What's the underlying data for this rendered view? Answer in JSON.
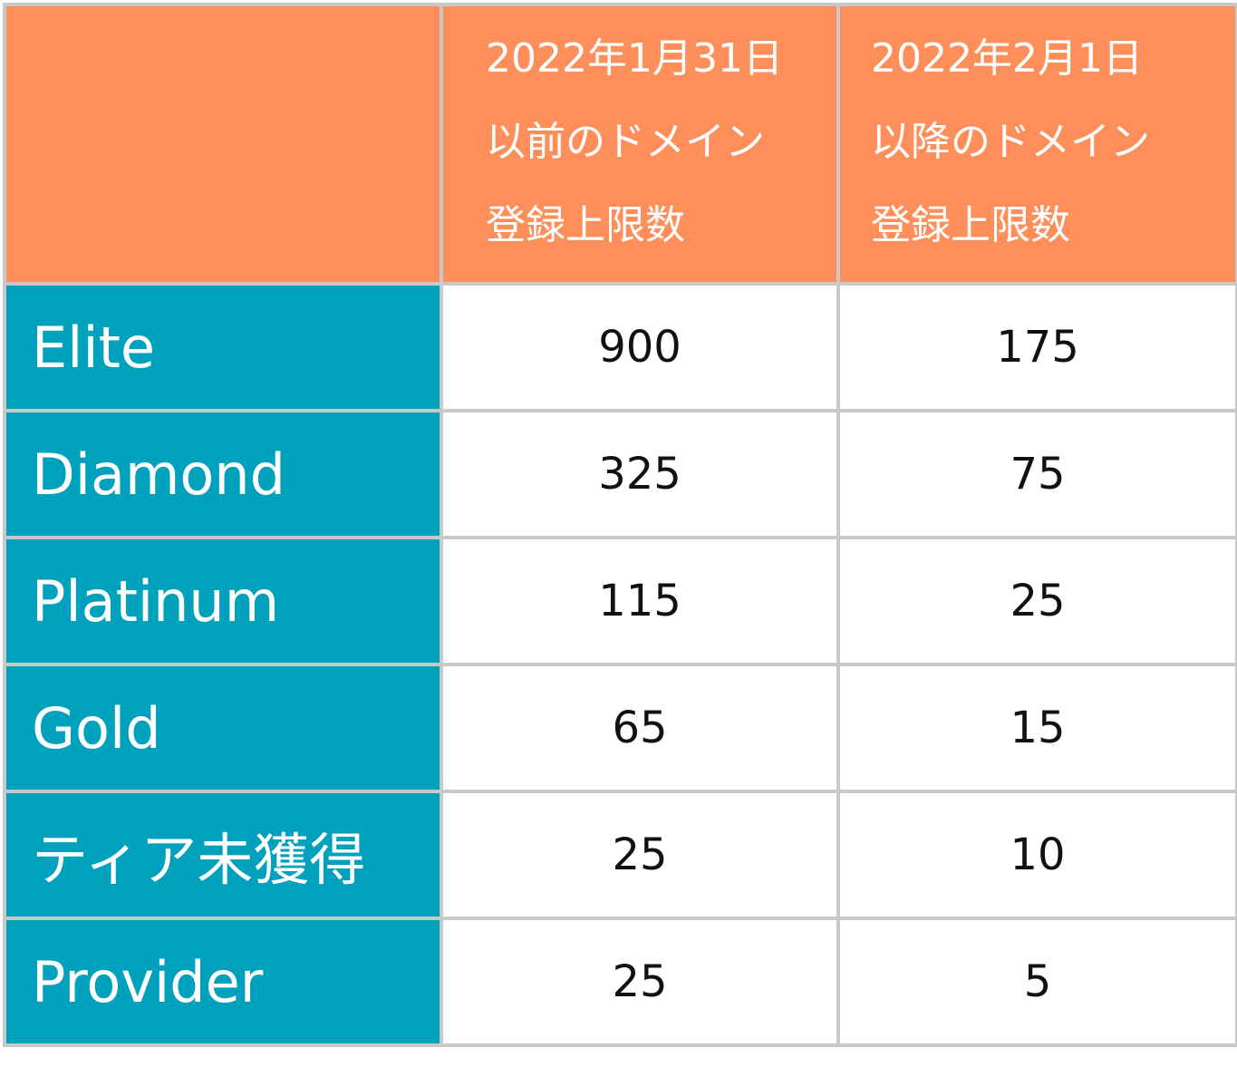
{
  "chart_data": {
    "type": "table",
    "columns": [
      "",
      "2022年1月31日\n以前のドメイン\n登録上限数",
      "2022年2月1日\n以降のドメイン\n登録上限数"
    ],
    "rows": [
      [
        "Elite",
        "900",
        "175"
      ],
      [
        "Diamond",
        "325",
        "75"
      ],
      [
        "Platinum",
        "115",
        "25"
      ],
      [
        "Gold",
        "65",
        "15"
      ],
      [
        "ティア未獲得",
        "25",
        "10"
      ],
      [
        "Provider",
        "25",
        "5"
      ]
    ]
  },
  "colors": {
    "header_bg": "#ff8f5a",
    "label_bg": "#00a1bd",
    "grid": "#c8c8c8"
  }
}
